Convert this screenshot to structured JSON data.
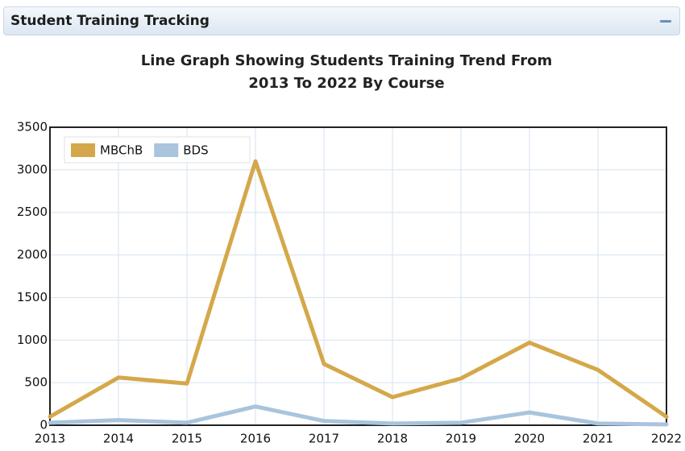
{
  "panel": {
    "title": "Student Training Tracking"
  },
  "chart_data": {
    "type": "line",
    "title": "Line Graph Showing Students Training Trend From 2013 To 2022 By Course",
    "x": [
      2013,
      2014,
      2015,
      2016,
      2017,
      2018,
      2019,
      2020,
      2021,
      2022
    ],
    "series": [
      {
        "name": "MBChB",
        "color": "#d4a84a",
        "values": [
          100,
          560,
          490,
          3100,
          720,
          330,
          550,
          970,
          650,
          100
        ]
      },
      {
        "name": "BDS",
        "color": "#a9c4dc",
        "values": [
          30,
          60,
          30,
          220,
          50,
          20,
          30,
          150,
          20,
          10
        ]
      }
    ],
    "xlim": [
      2013,
      2022
    ],
    "xticks": [
      2013,
      2014,
      2015,
      2016,
      2017,
      2018,
      2019,
      2020,
      2021,
      2022
    ],
    "ylim": [
      0,
      3500
    ],
    "yticks": [
      0,
      500,
      1000,
      1500,
      2000,
      2500,
      3000,
      3500
    ],
    "grid": true,
    "legend": "top-left"
  }
}
